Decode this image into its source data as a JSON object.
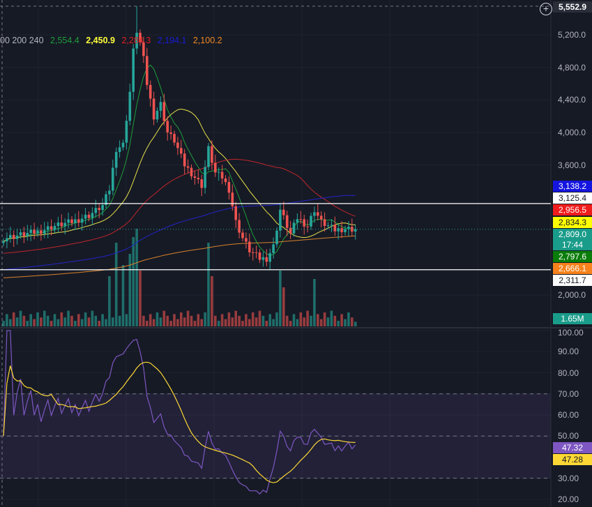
{
  "legend": {
    "periods_text": "00 200 240",
    "values": [
      {
        "text": "2,554.4",
        "color": "#1e9e3a"
      },
      {
        "text": "2,450.9",
        "color": "#ffff3b"
      },
      {
        "text": "2,284.3",
        "color": "#e02020"
      },
      {
        "text": "2,194.1",
        "color": "#1a1ad6"
      },
      {
        "text": "2,100.2",
        "color": "#f08a24"
      }
    ]
  },
  "header": {
    "high_label": "5,552.9",
    "add_icon": "plus-circle-icon"
  },
  "price_axis": {
    "ticks": [
      "5,200.0",
      "4,800.0",
      "4,400.0",
      "4,000.0",
      "3,600.0",
      "2,000.0"
    ],
    "tick_values": [
      5200,
      4800,
      4400,
      4000,
      3600,
      2000
    ],
    "badges": [
      {
        "text": "3,138.2",
        "value": 3138.2,
        "bg": "#1515e0",
        "fg": "#ffffff"
      },
      {
        "text": "3,125.4",
        "value": 3125.4,
        "bg": "#ffffff",
        "fg": "#131722"
      },
      {
        "text": "2,956.5",
        "value": 2956.5,
        "bg": "#f01c1c",
        "fg": "#ffffff"
      },
      {
        "text": "2,834.3",
        "value": 2834.3,
        "bg": "#ffff00",
        "fg": "#131722"
      },
      {
        "text": "2,809.0",
        "value": 2809.0,
        "bg": "#1a9c8a",
        "fg": "#ffffff"
      },
      {
        "text": "17:44",
        "value": 2809.0,
        "bg": "#1a9c8a",
        "fg": "#ffffff"
      },
      {
        "text": "2,797.6",
        "value": 2797.6,
        "bg": "#0a7d0a",
        "fg": "#ffffff"
      },
      {
        "text": "2,666.1",
        "value": 2666.1,
        "bg": "#f7821b",
        "fg": "#ffffff"
      },
      {
        "text": "2,311.7",
        "value": 2311.7,
        "bg": "#ffffff",
        "fg": "#131722"
      }
    ],
    "volume_badge": "1.65M"
  },
  "rsi_axis": {
    "ticks": [
      "100.00",
      "90.00",
      "80.00",
      "70.00",
      "60.00",
      "50.00",
      "30.00",
      "20.00"
    ],
    "tick_values": [
      100,
      90,
      80,
      70,
      60,
      50,
      30,
      20
    ],
    "badges": [
      {
        "text": "47.32",
        "value": 47.32,
        "bg": "#7e57c2",
        "fg": "#ffffff"
      },
      {
        "text": "47.28",
        "value": 47.28,
        "bg": "#fdd835",
        "fg": "#131722"
      }
    ]
  },
  "chart_data": {
    "type": "candlestick",
    "price_high": 5552.9,
    "horizontal_levels": [
      3125.4,
      2311.7
    ],
    "last_price": 2809.0,
    "close_keypoints": [
      [
        0,
        2700
      ],
      [
        10,
        2780
      ],
      [
        15,
        2850
      ],
      [
        20,
        2900
      ],
      [
        25,
        2980
      ],
      [
        29,
        3100
      ],
      [
        31,
        3300
      ],
      [
        33,
        3800
      ],
      [
        35,
        3850
      ],
      [
        37,
        4500
      ],
      [
        38,
        5000
      ],
      [
        39,
        5250
      ],
      [
        40,
        5100
      ],
      [
        41,
        4900
      ],
      [
        42,
        4600
      ],
      [
        44,
        4200
      ],
      [
        46,
        4350
      ],
      [
        48,
        4000
      ],
      [
        50,
        3900
      ],
      [
        53,
        3600
      ],
      [
        56,
        3450
      ],
      [
        58,
        3350
      ],
      [
        60,
        3800
      ],
      [
        62,
        3500
      ],
      [
        64,
        3450
      ],
      [
        66,
        3300
      ],
      [
        68,
        2900
      ],
      [
        70,
        2700
      ],
      [
        72,
        2550
      ],
      [
        75,
        2450
      ],
      [
        77,
        2450
      ],
      [
        79,
        2600
      ],
      [
        81,
        3050
      ],
      [
        83,
        2850
      ],
      [
        84,
        2750
      ],
      [
        86,
        2950
      ],
      [
        89,
        2850
      ],
      [
        91,
        3050
      ],
      [
        93,
        2900
      ],
      [
        95,
        2850
      ],
      [
        97,
        2800
      ],
      [
        100,
        2820
      ],
      [
        103,
        2809
      ]
    ],
    "volume_spikes_m": [
      [
        31,
        18
      ],
      [
        33,
        30
      ],
      [
        35,
        22
      ],
      [
        37,
        26
      ],
      [
        38,
        32
      ],
      [
        39,
        35
      ],
      [
        40,
        20
      ],
      [
        60,
        30
      ],
      [
        61,
        18
      ],
      [
        81,
        20
      ],
      [
        82,
        14
      ],
      [
        91,
        17
      ]
    ],
    "ma_periods": [
      7,
      20,
      50,
      100,
      200
    ],
    "ma_colors": [
      "#1e9e3a",
      "#e6e04a",
      "#c0262b",
      "#2424c8",
      "#d9822b"
    ],
    "rsi_period": 14,
    "rsi_ma_period": 14,
    "rsi_levels": [
      70,
      50,
      30
    ]
  }
}
